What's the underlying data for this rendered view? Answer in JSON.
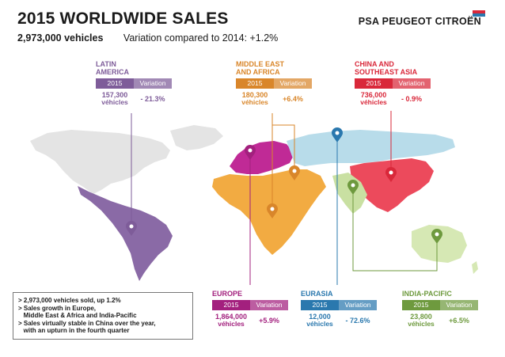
{
  "title": "2015 WORLDWIDE SALES",
  "subtitle_total": "2,973,000 vehicles",
  "subtitle_variation": "Variation compared to 2014: +1.2%",
  "brand": "PSA PEUGEOT CITROËN",
  "colors": {
    "latin_america": "#7e5c99",
    "middle_east_africa": "#e8a03a",
    "china_sea": "#e83a4a",
    "europe": "#b8228c",
    "eurasia": "#2a86be",
    "india_pacific": "#7ca84a",
    "map_grey": "#e4e4e4"
  },
  "regions": {
    "latin_america": {
      "name_line1": "LATIN",
      "name_line2": "AMERICA",
      "col_year": "2015",
      "col_var": "Variation",
      "number": "157,300",
      "unit": "véhicles",
      "variation": "- 21.3%",
      "color": "#7e5c99"
    },
    "middle_east_africa": {
      "name_line1": "MIDDLE EAST",
      "name_line2": "AND AFRICA",
      "col_year": "2015",
      "col_var": "Variation",
      "number": "180,300",
      "unit": "véhicles",
      "variation": "+6.4%",
      "color": "#d9862a"
    },
    "china_sea": {
      "name_line1": "CHINA AND",
      "name_line2": "SOUTHEAST ASIA",
      "col_year": "2015",
      "col_var": "Variation",
      "number": "736,000",
      "unit": "véhicles",
      "variation": "- 0.9%",
      "color": "#d9283a"
    },
    "europe": {
      "name_line1": "EUROPE",
      "name_line2": "",
      "col_year": "2015",
      "col_var": "Variation",
      "number": "1,864,000",
      "unit": "véhicles",
      "variation": "+5.9%",
      "color": "#a3207e"
    },
    "eurasia": {
      "name_line1": "EURASIA",
      "name_line2": "",
      "col_year": "2015",
      "col_var": "Variation",
      "number": "12,000",
      "unit": "véhicles",
      "variation": "- 72.6%",
      "color": "#2a78ae"
    },
    "india_pacific": {
      "name_line1": "INDIA-PACIFIC",
      "name_line2": "",
      "col_year": "2015",
      "col_var": "Variation",
      "number": "23,800",
      "unit": "véhicles",
      "variation": "+6.5%",
      "color": "#6e9a3e"
    }
  },
  "notes": [
    "> 2,973,000 vehicles sold, up 1.2%",
    "> Sales growth in Europe,",
    "   Middle East & Africa and India-Pacific",
    "> Sales virtually stable in China over the year,",
    "   with an upturn in the fourth quarter"
  ]
}
